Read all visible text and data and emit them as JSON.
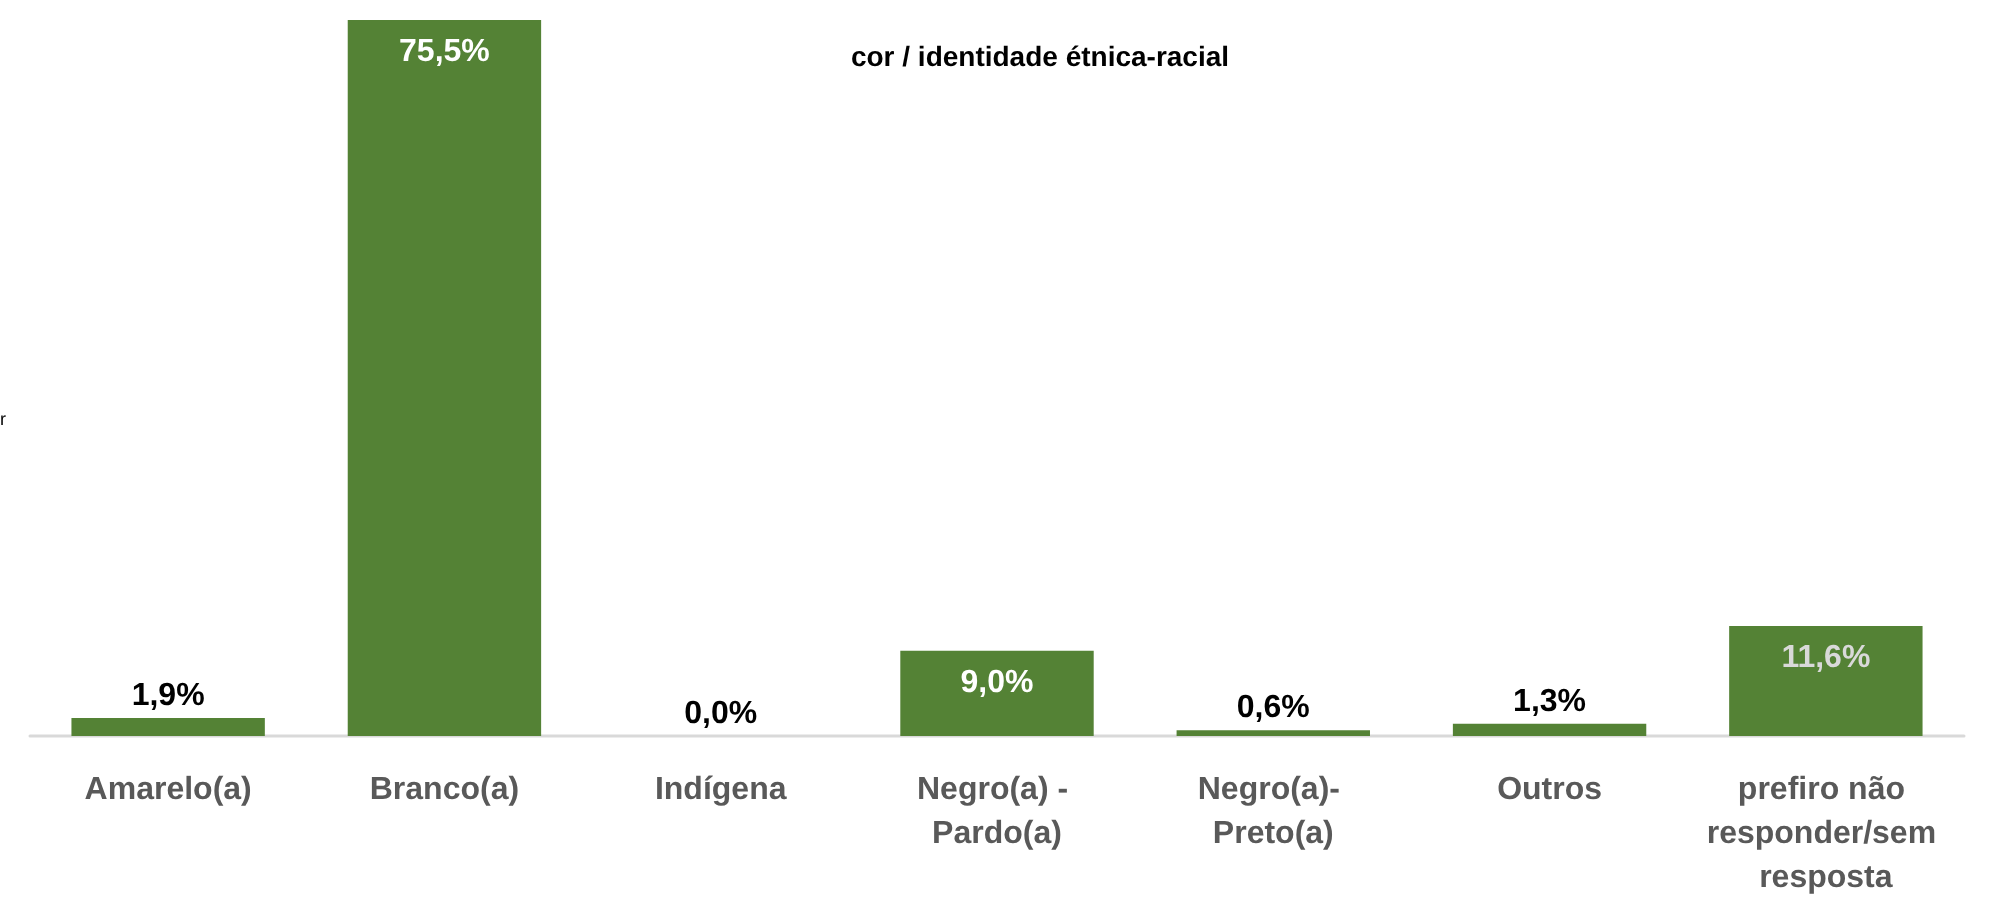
{
  "chart_data": {
    "type": "bar",
    "title": "cor / identidade étnica-racial",
    "categories": [
      "Amarelo(a)",
      "Branco(a)",
      "Indígena",
      "Negro(a) - Pardo(a)",
      "Negro(a)- Preto(a)",
      "Outros",
      "prefiro não responder/sem resposta"
    ],
    "values": [
      1.9,
      75.5,
      0.0,
      9.0,
      0.6,
      1.3,
      11.6
    ],
    "value_labels": [
      "1,9%",
      "75,5%",
      "0,0%",
      "9,0%",
      "0,6%",
      "1,3%",
      "11,6%"
    ],
    "color": "#548235",
    "annotations": [
      "r"
    ]
  }
}
